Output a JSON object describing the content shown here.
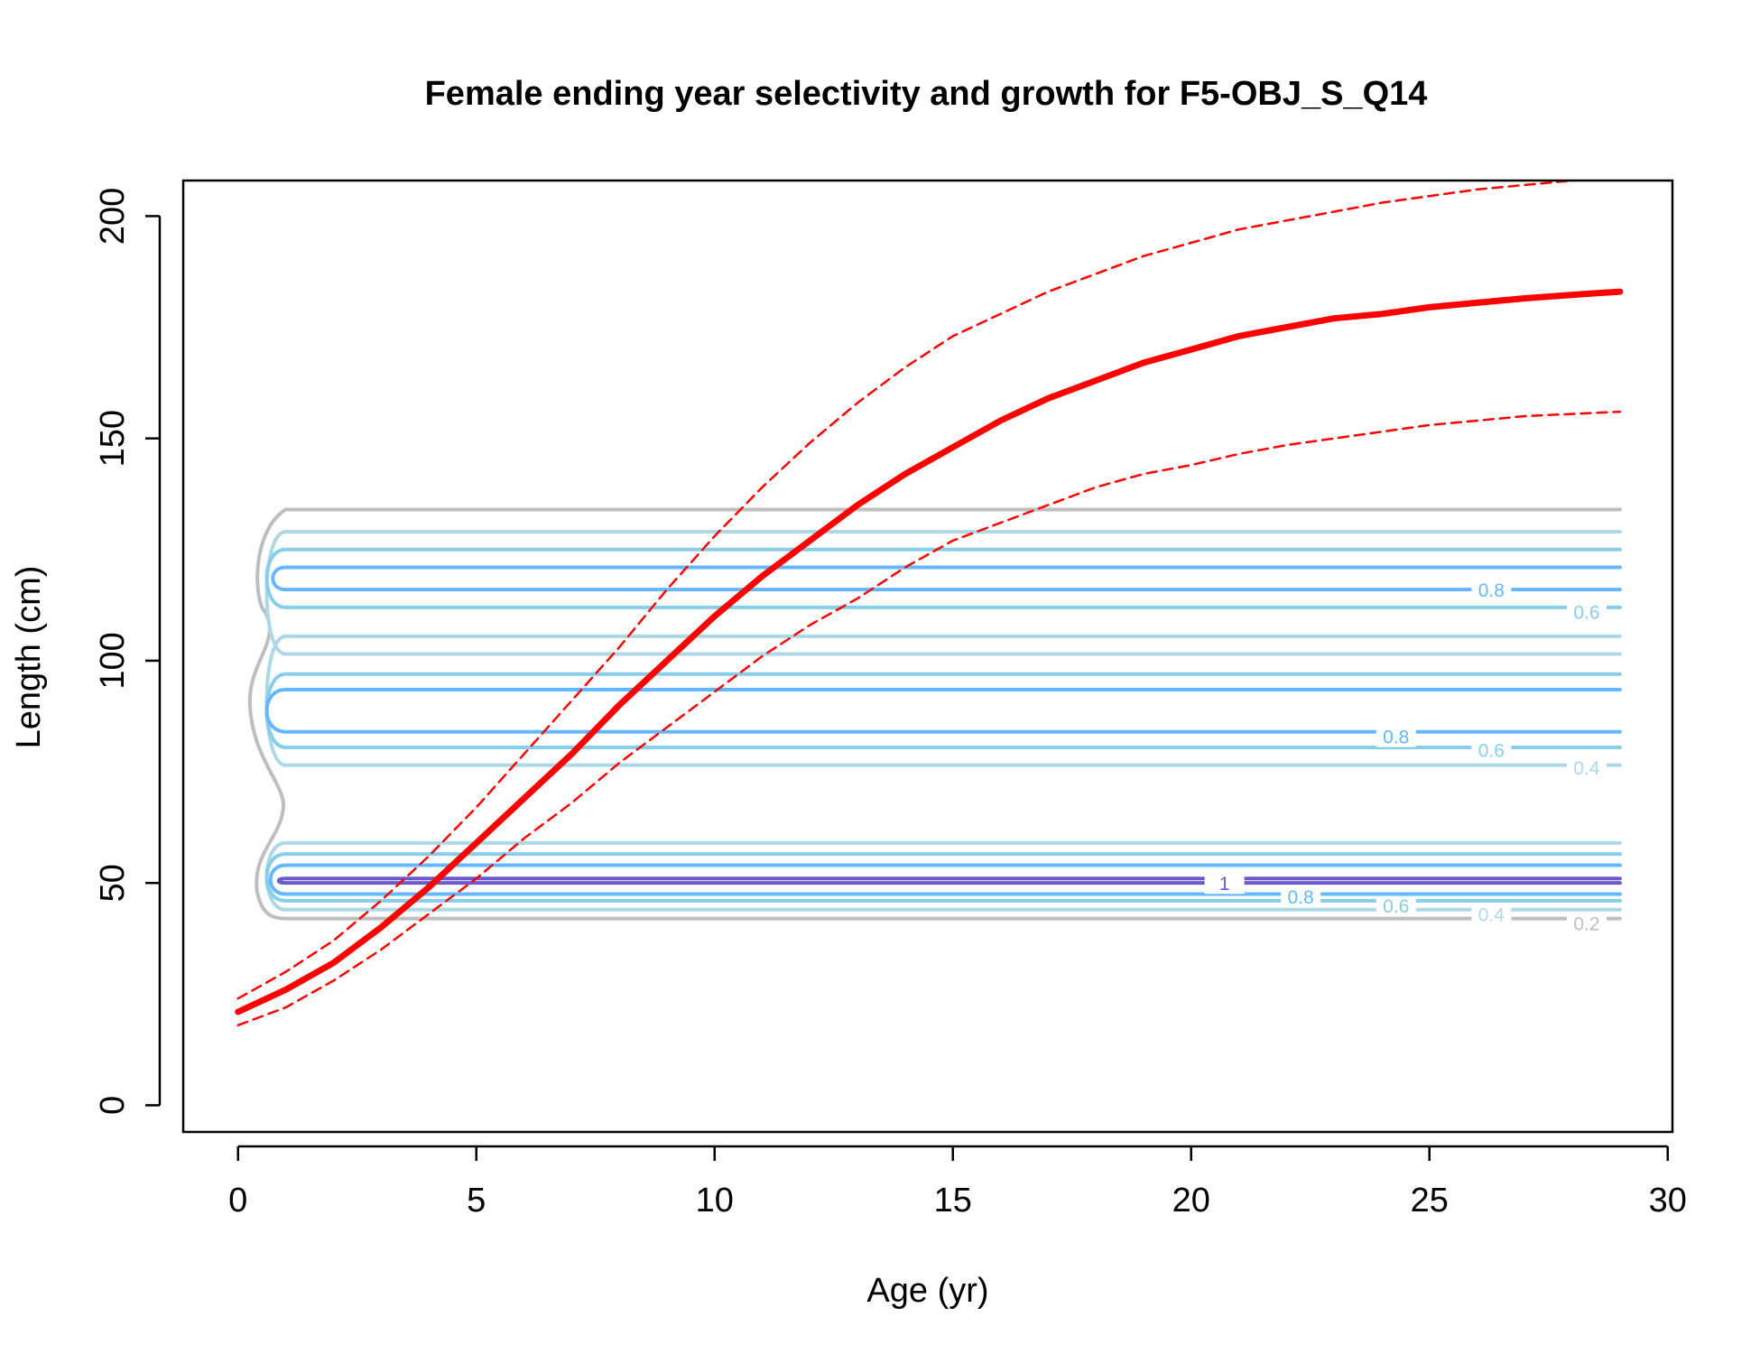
{
  "chart_data": {
    "type": "line",
    "title": "Female ending year selectivity and growth for F5-OBJ_S_Q14",
    "xlabel": "Age (yr)",
    "ylabel": "Length (cm)",
    "xlim": [
      -1.15,
      30.1
    ],
    "ylim": [
      -6,
      208
    ],
    "x_ticks": [
      0,
      5,
      10,
      15,
      20,
      25,
      30
    ],
    "y_ticks": [
      0,
      50,
      100,
      150,
      200
    ],
    "grid": false,
    "series": [
      {
        "role": "mean",
        "color": "#ff0000",
        "style": "solid-thick",
        "x": [
          0,
          1,
          2,
          3,
          4,
          5,
          6,
          7,
          8,
          9,
          10,
          11,
          12,
          13,
          14,
          15,
          16,
          17,
          18,
          19,
          20,
          21,
          22,
          23,
          24,
          25,
          26,
          27,
          28,
          29
        ],
        "y": [
          21,
          26,
          32,
          40,
          49,
          59,
          69,
          79,
          90,
          100,
          110,
          119,
          127,
          135,
          142,
          148,
          154,
          159,
          163,
          167,
          170,
          173,
          175,
          177,
          178,
          179.5,
          180.5,
          181.5,
          182.3,
          183
        ]
      },
      {
        "role": "upper-interval",
        "color": "#ff0000",
        "style": "dashed",
        "x": [
          0,
          1,
          2,
          3,
          4,
          5,
          6,
          7,
          8,
          9,
          10,
          11,
          12,
          13,
          14,
          15,
          16,
          17,
          18,
          19,
          20,
          21,
          22,
          23,
          24,
          25,
          26,
          27,
          28,
          29
        ],
        "y": [
          24,
          30,
          37,
          46,
          56,
          67,
          79,
          91,
          103,
          116,
          128,
          139,
          149,
          158,
          166,
          173,
          178,
          183,
          187,
          191,
          194,
          197,
          199,
          201,
          203,
          204.5,
          206,
          207,
          208,
          209
        ]
      },
      {
        "role": "lower-interval",
        "color": "#ff0000",
        "style": "dashed",
        "x": [
          0,
          1,
          2,
          3,
          4,
          5,
          6,
          7,
          8,
          9,
          10,
          11,
          12,
          13,
          14,
          15,
          16,
          17,
          18,
          19,
          20,
          21,
          22,
          23,
          24,
          25,
          26,
          27,
          28,
          29
        ],
        "y": [
          18,
          22,
          28,
          35,
          43,
          51,
          60,
          68,
          77,
          85,
          93,
          101,
          108,
          114,
          121,
          127,
          131,
          135,
          139,
          142,
          144,
          146.5,
          148.5,
          150,
          151.5,
          153,
          154,
          155,
          155.5,
          156
        ]
      }
    ],
    "contours": [
      {
        "level": 0.2,
        "color": "#bebebe",
        "width": 4,
        "segments": [
          {
            "lower": 42,
            "upper": 134,
            "x_start": 1,
            "x_end": 29,
            "wavy_left": true
          }
        ],
        "labels": [
          {
            "text": "0.2",
            "x": 28.3,
            "y": 41
          }
        ]
      },
      {
        "level": 0.4,
        "color": "#add8e6",
        "width": 4,
        "segments": [
          {
            "lower": 44,
            "upper": 59,
            "x_start": 1,
            "x_end": 29
          },
          {
            "lower": 76.5,
            "upper": 105.5,
            "x_start": 1,
            "x_end": 29
          },
          {
            "lower": 101.5,
            "upper": 129,
            "x_start": 1,
            "x_end": 29
          }
        ],
        "labels": [
          {
            "text": "0.4",
            "x": 26.3,
            "y": 43
          },
          {
            "text": "0.4",
            "x": 28.3,
            "y": 76
          }
        ]
      },
      {
        "level": 0.6,
        "color": "#87ceeb",
        "width": 4,
        "segments": [
          {
            "lower": 46,
            "upper": 56.5,
            "x_start": 1,
            "x_end": 29
          },
          {
            "lower": 80.5,
            "upper": 97,
            "x_start": 1,
            "x_end": 29
          },
          {
            "lower": 112,
            "upper": 125,
            "x_start": 1,
            "x_end": 29
          }
        ],
        "labels": [
          {
            "text": "0.6",
            "x": 24.3,
            "y": 45
          },
          {
            "text": "0.6",
            "x": 26.3,
            "y": 80
          },
          {
            "text": "0.6",
            "x": 28.3,
            "y": 111
          }
        ]
      },
      {
        "level": 0.8,
        "color": "#63b8ff",
        "width": 4,
        "segments": [
          {
            "lower": 47.5,
            "upper": 54,
            "x_start": 1,
            "x_end": 29
          },
          {
            "lower": 84,
            "upper": 93.5,
            "x_start": 1,
            "x_end": 29
          },
          {
            "lower": 116,
            "upper": 121,
            "x_start": 1,
            "x_end": 29
          }
        ],
        "labels": [
          {
            "text": "0.8",
            "x": 22.3,
            "y": 47
          },
          {
            "text": "0.8",
            "x": 24.3,
            "y": 83
          },
          {
            "text": "0.8",
            "x": 26.3,
            "y": 116
          }
        ]
      },
      {
        "level": 1,
        "color": "#6a5acd",
        "width": 4,
        "segments": [
          {
            "lower": 50,
            "upper": 51,
            "x_start": 1,
            "x_end": 29
          }
        ],
        "labels": [
          {
            "text": "1",
            "x": 20.7,
            "y": 50
          }
        ]
      }
    ]
  }
}
